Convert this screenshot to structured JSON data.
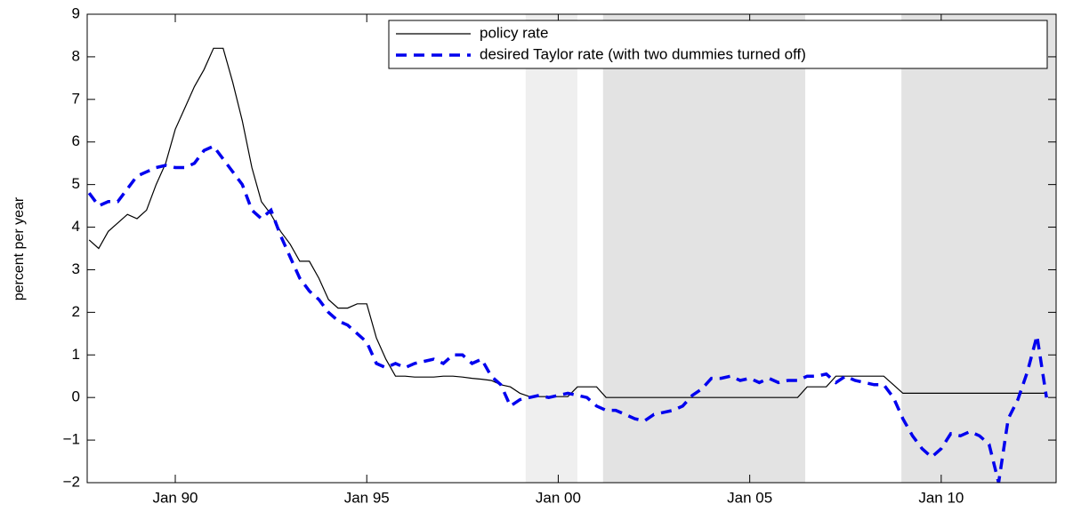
{
  "chart_data": {
    "type": "line",
    "ylabel": "percent per year",
    "xlim": [
      1987.7,
      2013.0
    ],
    "xticks": [
      {
        "value": 1990,
        "label": "Jan 90"
      },
      {
        "value": 1995,
        "label": "Jan 95"
      },
      {
        "value": 2000,
        "label": "Jan 00"
      },
      {
        "value": 2005,
        "label": "Jan 05"
      },
      {
        "value": 2010,
        "label": "Jan 10"
      }
    ],
    "ylim": [
      -2,
      9
    ],
    "yticks": [
      {
        "value": -2,
        "label": "−2"
      },
      {
        "value": -1,
        "label": "−1"
      },
      0,
      1,
      2,
      3,
      4,
      5,
      6,
      7,
      8,
      9
    ],
    "legend": "upper right",
    "shaded_regions": [
      {
        "x": [
          1999.15,
          2000.5
        ],
        "color": "#efefef"
      },
      {
        "x": [
          2001.17,
          2006.45
        ],
        "color": "#e3e3e3"
      },
      {
        "x": [
          2008.96,
          2013.0
        ],
        "color": "#e3e3e3"
      }
    ],
    "x": [
      1987.75,
      1988,
      1988.25,
      1988.5,
      1988.75,
      1989,
      1989.25,
      1989.5,
      1989.75,
      1990,
      1990.25,
      1990.5,
      1990.75,
      1991,
      1991.25,
      1991.5,
      1991.75,
      1992,
      1992.25,
      1992.5,
      1992.75,
      1993,
      1993.25,
      1993.5,
      1993.75,
      1994,
      1994.25,
      1994.5,
      1994.75,
      1995,
      1995.25,
      1995.5,
      1995.75,
      1996,
      1996.25,
      1996.5,
      1996.75,
      1997,
      1997.25,
      1997.5,
      1997.75,
      1998,
      1998.25,
      1998.5,
      1998.75,
      1999,
      1999.25,
      1999.5,
      1999.75,
      2000,
      2000.25,
      2000.5,
      2000.75,
      2001,
      2001.25,
      2001.5,
      2001.75,
      2002,
      2002.25,
      2002.5,
      2002.75,
      2003,
      2003.25,
      2003.5,
      2003.75,
      2004,
      2004.25,
      2004.5,
      2004.75,
      2005,
      2005.25,
      2005.5,
      2005.75,
      2006,
      2006.25,
      2006.5,
      2006.75,
      2007,
      2007.25,
      2007.5,
      2007.75,
      2008,
      2008.25,
      2008.5,
      2008.75,
      2009,
      2009.25,
      2009.5,
      2009.75,
      2010,
      2010.25,
      2010.5,
      2010.75,
      2011,
      2011.25,
      2011.5,
      2011.75,
      2012,
      2012.25,
      2012.5,
      2012.75
    ],
    "series": [
      {
        "name": "policy rate",
        "color": "#000000",
        "dash": false,
        "values": [
          3.7,
          3.5,
          3.9,
          4.1,
          4.3,
          4.2,
          4.4,
          5.0,
          5.5,
          6.3,
          6.8,
          7.3,
          7.7,
          8.2,
          8.2,
          7.4,
          6.5,
          5.4,
          4.6,
          4.3,
          3.9,
          3.6,
          3.2,
          3.2,
          2.8,
          2.3,
          2.1,
          2.1,
          2.2,
          2.2,
          1.4,
          0.9,
          0.5,
          0.5,
          0.48,
          0.48,
          0.48,
          0.5,
          0.5,
          0.48,
          0.45,
          0.43,
          0.4,
          0.3,
          0.25,
          0.1,
          0.02,
          0.02,
          0.02,
          0.02,
          0.02,
          0.25,
          0.25,
          0.25,
          0.0,
          0.0,
          0.0,
          0.0,
          0.0,
          0.0,
          0.0,
          0.0,
          0.0,
          0.0,
          0.0,
          0.0,
          0.0,
          0.0,
          0.0,
          0.0,
          0.0,
          0.0,
          0.0,
          0.0,
          0.0,
          0.25,
          0.25,
          0.25,
          0.5,
          0.5,
          0.5,
          0.5,
          0.5,
          0.5,
          0.3,
          0.1,
          0.1,
          0.1,
          0.1,
          0.1,
          0.1,
          0.1,
          0.1,
          0.1,
          0.1,
          0.1,
          0.1,
          0.1,
          0.1,
          0.1,
          0.1
        ]
      },
      {
        "name": "desired Taylor rate (with two dummies turned off)",
        "color": "#0000ee",
        "dash": true,
        "values": [
          4.8,
          4.5,
          4.6,
          4.6,
          4.9,
          5.2,
          5.3,
          5.4,
          5.45,
          5.4,
          5.4,
          5.5,
          5.8,
          5.9,
          5.6,
          5.3,
          5.0,
          4.4,
          4.2,
          4.4,
          3.8,
          3.3,
          2.8,
          2.5,
          2.3,
          2.0,
          1.8,
          1.7,
          1.5,
          1.3,
          0.8,
          0.7,
          0.8,
          0.7,
          0.8,
          0.85,
          0.9,
          0.8,
          1.0,
          1.0,
          0.8,
          0.9,
          0.5,
          0.3,
          -0.2,
          -0.05,
          0.0,
          0.05,
          0.0,
          0.05,
          0.1,
          0.05,
          0.0,
          -0.2,
          -0.3,
          -0.3,
          -0.4,
          -0.5,
          -0.55,
          -0.4,
          -0.35,
          -0.3,
          -0.2,
          0.05,
          0.2,
          0.45,
          0.45,
          0.5,
          0.4,
          0.45,
          0.35,
          0.45,
          0.35,
          0.4,
          0.4,
          0.5,
          0.5,
          0.55,
          0.35,
          0.5,
          0.4,
          0.35,
          0.3,
          0.3,
          0.0,
          -0.5,
          -0.9,
          -1.2,
          -1.4,
          -1.2,
          -0.85,
          -0.9,
          -0.8,
          -0.9,
          -1.1,
          -2.0,
          -0.5,
          -0.05,
          0.6,
          1.45,
          0.0
        ]
      }
    ]
  }
}
